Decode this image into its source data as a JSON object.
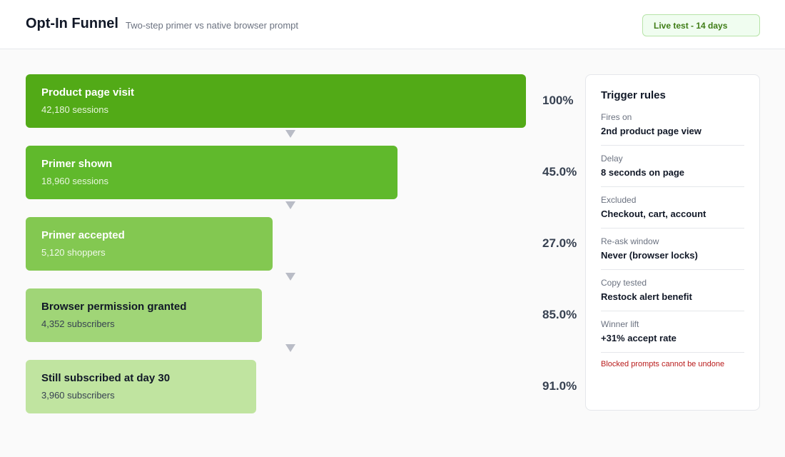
{
  "header": {
    "title": "Opt-In Funnel",
    "subtitle": "Two-step primer vs native browser prompt",
    "badge": "Live test - 14 days"
  },
  "chart_data": {
    "type": "bar",
    "categories": [
      "Product page visit",
      "Primer shown",
      "Primer accepted",
      "Browser permission granted",
      "Still subscribed at day 30"
    ],
    "values": [
      42180,
      18960,
      5120,
      4352,
      3960
    ],
    "count_labels": [
      "42,180 sessions",
      "18,960 sessions",
      "5,120 shoppers",
      "4,352 subscribers",
      "3,960 subscribers"
    ],
    "percent_labels": [
      "100%",
      "45.0%",
      "27.0%",
      "85.0%",
      "91.0%"
    ],
    "colors": [
      "#52aa17",
      "#60b92c",
      "#83c851",
      "#a0d577",
      "#c0e4a0"
    ],
    "text_colors": [
      "#ffffff",
      "#ffffff",
      "#ffffff",
      "#111827",
      "#111827"
    ],
    "count_colors": [
      "#e8f5dd",
      "#e8f5dd",
      "#f0f9ea",
      "#374151",
      "#374151"
    ]
  },
  "panel": {
    "title": "Trigger rules",
    "rules": [
      {
        "label": "Fires on",
        "value": "2nd product page view"
      },
      {
        "label": "Delay",
        "value": "8 seconds on page"
      },
      {
        "label": "Excluded",
        "value": "Checkout, cart, account"
      },
      {
        "label": "Re-ask window",
        "value": "Never (browser locks)"
      },
      {
        "label": "Copy tested",
        "value": "Restock alert benefit"
      },
      {
        "label": "Winner lift",
        "value": "+31% accept rate"
      }
    ],
    "warning": "Blocked prompts cannot be undone"
  }
}
